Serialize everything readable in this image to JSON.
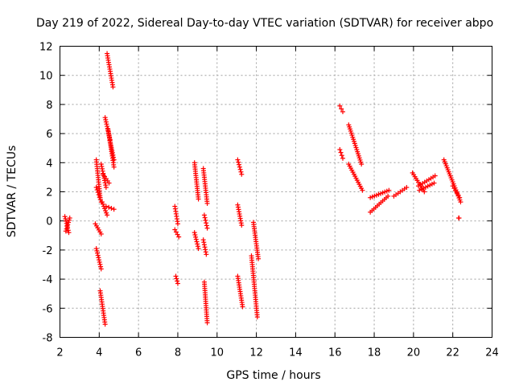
{
  "chart_data": {
    "type": "scatter",
    "title": "Day 219 of 2022, Sidereal Day-to-day VTEC variation (SDTVAR) for receiver abpo",
    "xlabel": "GPS time / hours",
    "ylabel": "SDTVAR / TECUs",
    "xlim": [
      2,
      24
    ],
    "ylim": [
      -8,
      12
    ],
    "xticks": [
      2,
      4,
      6,
      8,
      10,
      12,
      14,
      16,
      18,
      20,
      22,
      24
    ],
    "yticks": [
      -8,
      -6,
      -4,
      -2,
      0,
      2,
      4,
      6,
      8,
      10,
      12
    ],
    "grid": true,
    "marker": "+",
    "color": "#ff0000",
    "arcs": [
      {
        "x": [
          2.25,
          2.45
        ],
        "y": [
          0.3,
          -0.8
        ]
      },
      {
        "x": [
          2.3,
          2.5
        ],
        "y": [
          -0.7,
          0.2
        ]
      },
      {
        "x": [
          3.85,
          4.05
        ],
        "y": [
          4.2,
          1.6
        ]
      },
      {
        "x": [
          3.85,
          4.1
        ],
        "y": [
          2.3,
          1.3
        ]
      },
      {
        "x": [
          3.8,
          4.1
        ],
        "y": [
          -0.2,
          -0.9
        ]
      },
      {
        "x": [
          3.85,
          4.1
        ],
        "y": [
          -1.9,
          -3.3
        ]
      },
      {
        "x": [
          4.05,
          4.3
        ],
        "y": [
          -4.8,
          -7.1
        ]
      },
      {
        "x": [
          4.1,
          4.35
        ],
        "y": [
          3.9,
          2.3
        ]
      },
      {
        "x": [
          4.2,
          4.5
        ],
        "y": [
          3.2,
          2.6
        ]
      },
      {
        "x": [
          4.15,
          4.4
        ],
        "y": [
          1.3,
          0.4
        ]
      },
      {
        "x": [
          4.3,
          4.55
        ],
        "y": [
          7.1,
          5.6
        ]
      },
      {
        "x": [
          4.45,
          4.75
        ],
        "y": [
          6.3,
          3.7
        ]
      },
      {
        "x": [
          4.55,
          4.75
        ],
        "y": [
          5.5,
          4.2
        ]
      },
      {
        "x": [
          4.4,
          4.7
        ],
        "y": [
          11.5,
          9.2
        ]
      },
      {
        "x": [
          4.35,
          4.75
        ],
        "y": [
          1.0,
          0.8
        ]
      },
      {
        "x": [
          7.85,
          8.0
        ],
        "y": [
          1.0,
          -0.2
        ]
      },
      {
        "x": [
          7.85,
          8.05
        ],
        "y": [
          -0.6,
          -1.1
        ]
      },
      {
        "x": [
          7.9,
          8.0
        ],
        "y": [
          -3.8,
          -4.3
        ]
      },
      {
        "x": [
          8.85,
          9.05
        ],
        "y": [
          4.0,
          1.5
        ]
      },
      {
        "x": [
          8.85,
          9.05
        ],
        "y": [
          -0.8,
          -1.9
        ]
      },
      {
        "x": [
          9.3,
          9.5
        ],
        "y": [
          3.6,
          1.2
        ]
      },
      {
        "x": [
          9.35,
          9.5
        ],
        "y": [
          0.4,
          -0.5
        ]
      },
      {
        "x": [
          9.3,
          9.45
        ],
        "y": [
          -1.3,
          -2.3
        ]
      },
      {
        "x": [
          9.35,
          9.5
        ],
        "y": [
          -4.2,
          -7.0
        ]
      },
      {
        "x": [
          11.05,
          11.25
        ],
        "y": [
          4.2,
          3.2
        ]
      },
      {
        "x": [
          11.05,
          11.25
        ],
        "y": [
          1.1,
          -0.3
        ]
      },
      {
        "x": [
          11.05,
          11.3
        ],
        "y": [
          -3.8,
          -5.9
        ]
      },
      {
        "x": [
          11.85,
          12.1
        ],
        "y": [
          -0.1,
          -2.6
        ]
      },
      {
        "x": [
          11.75,
          12.05
        ],
        "y": [
          -2.4,
          -6.6
        ]
      },
      {
        "x": [
          16.25,
          16.4
        ],
        "y": [
          7.9,
          7.5
        ]
      },
      {
        "x": [
          16.25,
          16.4
        ],
        "y": [
          4.9,
          4.3
        ]
      },
      {
        "x": [
          16.7,
          17.35
        ],
        "y": [
          6.6,
          3.9
        ]
      },
      {
        "x": [
          16.7,
          17.4
        ],
        "y": [
          3.9,
          2.1
        ]
      },
      {
        "x": [
          17.8,
          18.75
        ],
        "y": [
          1.6,
          2.1
        ]
      },
      {
        "x": [
          17.8,
          18.7
        ],
        "y": [
          0.6,
          1.7
        ]
      },
      {
        "x": [
          19.0,
          19.65
        ],
        "y": [
          1.7,
          2.3
        ]
      },
      {
        "x": [
          19.95,
          20.55
        ],
        "y": [
          3.3,
          2.0
        ]
      },
      {
        "x": [
          20.25,
          21.1
        ],
        "y": [
          2.4,
          3.1
        ]
      },
      {
        "x": [
          20.3,
          21.05
        ],
        "y": [
          2.1,
          2.6
        ]
      },
      {
        "x": [
          21.55,
          22.4
        ],
        "y": [
          4.2,
          1.3
        ]
      },
      {
        "x": [
          22.0,
          22.35
        ],
        "y": [
          2.4,
          1.6
        ]
      },
      {
        "x": [
          22.3,
          22.32
        ],
        "y": [
          0.2,
          0.2
        ]
      }
    ]
  }
}
